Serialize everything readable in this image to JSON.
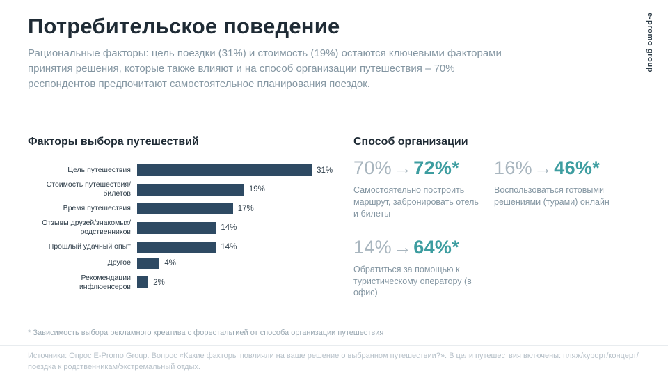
{
  "brand": {
    "vertical_label": "e-promo group"
  },
  "header": {
    "title": "Потребительское поведение",
    "subtitle": "Рациональные факторы: цель поездки (31%) и стоимость (19%) остаются ключевыми факторами принятия решения, которые также влияют и на способ организации путешествия – 70% респондентов предпочитают самостоятельное планирования поездок."
  },
  "chart": {
    "title": "Факторы выбора путешествий",
    "chart_data": {
      "type": "bar",
      "orientation": "horizontal",
      "categories": [
        "Цель путешествия",
        "Стоимость путешествия/билетов",
        "Время путешествия",
        "Отзывы друзей/знакомых/родственников",
        "Прошлый удачный опыт",
        "Другое",
        "Рекомендации инфлюенсеров"
      ],
      "values": [
        31,
        19,
        17,
        14,
        14,
        4,
        2
      ],
      "value_labels": [
        "31%",
        "19%",
        "17%",
        "14%",
        "14%",
        "4%",
        "2%"
      ],
      "bar_color": "#2e4a63",
      "xlim": [
        0,
        35
      ],
      "grid": false,
      "legend": false
    }
  },
  "organization": {
    "title": "Способ организации",
    "stats": [
      {
        "from": "70%",
        "arrow": "→",
        "to": "72%*",
        "caption": "Самостоятельно построить маршрут, забронировать отель и билеты"
      },
      {
        "from": "16%",
        "arrow": "→",
        "to": "46%*",
        "caption": "Воспользоваться готовыми решениями (турами) онлайн"
      },
      {
        "from": "14%",
        "arrow": "→",
        "to": "64%*",
        "caption": "Обратиться за помощью к туристическому оператору (в офис)"
      }
    ]
  },
  "footnotes": {
    "asterisk": "* Зависимость выбора рекламного креатива с форестальгией от способа организации путешествия",
    "source": "Источники: Опрос E-Promo Group. Вопрос «Какие факторы повлияли на ваше решение о выбранном путешествии?». В цели путешествия включены: пляж/курорт/концерт/поездка к родственникам/экстремальный отдых."
  }
}
